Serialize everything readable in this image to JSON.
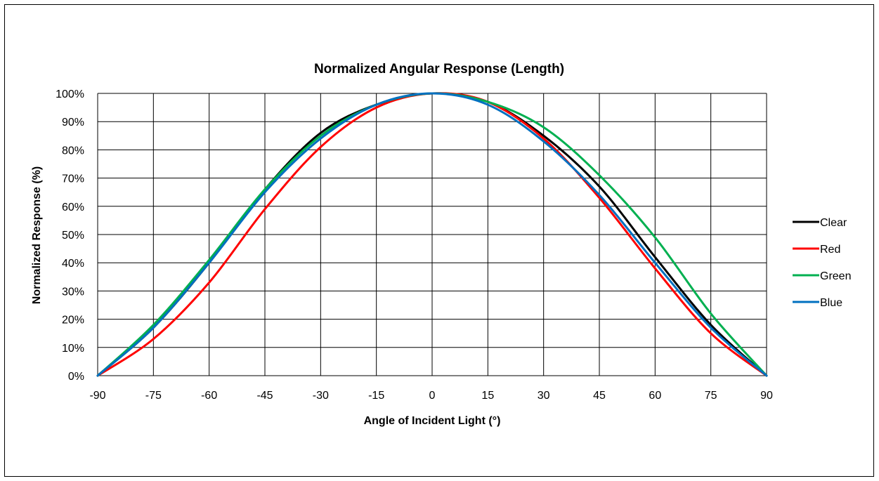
{
  "chart_data": {
    "type": "line",
    "title": "Normalized Angular Response (Length)",
    "xlabel": "Angle of Incident Light (°)",
    "ylabel": "Normalized Response (%)",
    "xlim": [
      -90,
      90
    ],
    "ylim": [
      0,
      100
    ],
    "x_ticks": [
      -90,
      -75,
      -60,
      -45,
      -30,
      -15,
      0,
      15,
      30,
      45,
      60,
      75,
      90
    ],
    "y_ticks": [
      0,
      10,
      20,
      30,
      40,
      50,
      60,
      70,
      80,
      90,
      100
    ],
    "x_tick_labels": [
      "-90",
      "-75",
      "-60",
      "-45",
      "-30",
      "-15",
      "0",
      "15",
      "30",
      "45",
      "60",
      "75",
      "90"
    ],
    "y_tick_labels": [
      "0%",
      "10%",
      "20%",
      "30%",
      "40%",
      "50%",
      "60%",
      "70%",
      "80%",
      "90%",
      "100%"
    ],
    "grid": true,
    "legend_position": "right",
    "x": [
      -90,
      -75,
      -60,
      -45,
      -30,
      -15,
      0,
      15,
      30,
      45,
      60,
      75,
      90
    ],
    "series": [
      {
        "name": "Clear",
        "color": "#000000",
        "values": [
          0,
          17,
          40,
          66,
          86,
          96,
          100,
          97,
          85,
          67,
          42,
          18,
          0
        ]
      },
      {
        "name": "Red",
        "color": "#ff0000",
        "values": [
          0,
          13,
          33,
          59,
          81,
          95,
          100,
          97,
          84,
          63,
          38,
          15,
          0
        ]
      },
      {
        "name": "Green",
        "color": "#00b050",
        "values": [
          0,
          18,
          41,
          66,
          85,
          96,
          100,
          97,
          88,
          71,
          49,
          22,
          0
        ]
      },
      {
        "name": "Blue",
        "color": "#0070c0",
        "values": [
          0,
          17,
          40,
          65,
          84,
          96,
          100,
          96,
          83,
          64,
          40,
          17,
          0
        ]
      }
    ]
  }
}
